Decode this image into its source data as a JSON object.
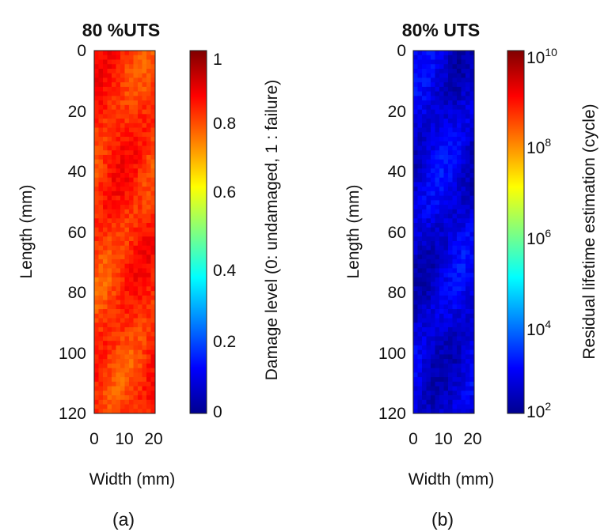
{
  "chart_data": [
    {
      "type": "heatmap",
      "title": "80 %UTS",
      "xlabel": "Width (mm)",
      "ylabel": "Length (mm)",
      "x_ticks": [
        "0",
        "10",
        "20"
      ],
      "y_ticks": [
        "0",
        "20",
        "40",
        "60",
        "80",
        "100",
        "120"
      ],
      "xlim": [
        0,
        20
      ],
      "ylim": [
        0,
        120
      ],
      "colorbar": {
        "label": "Damage level (0: undamaged, 1 : failure)",
        "ticks": [
          "0",
          "0.2",
          "0.4",
          "0.6",
          "0.8",
          "1"
        ],
        "scale": "linear",
        "range": [
          0,
          1
        ],
        "colormap": "jet"
      },
      "approx_level": 0.82,
      "panel_label": "(a)"
    },
    {
      "type": "heatmap",
      "title": "80% UTS",
      "xlabel": "Width (mm)",
      "ylabel": "Length (mm)",
      "x_ticks": [
        "0",
        "10",
        "20"
      ],
      "y_ticks": [
        "0",
        "20",
        "40",
        "60",
        "80",
        "100",
        "120"
      ],
      "xlim": [
        0,
        20
      ],
      "ylim": [
        0,
        120
      ],
      "colorbar": {
        "label": "Residual lifetime estimation (cycle)",
        "ticks": [
          {
            "base": "10",
            "exp": "2"
          },
          {
            "base": "10",
            "exp": "4"
          },
          {
            "base": "10",
            "exp": "6"
          },
          {
            "base": "10",
            "exp": "8"
          },
          {
            "base": "10",
            "exp": "10"
          }
        ],
        "scale": "log",
        "range": [
          100,
          10000000000
        ],
        "colormap": "jet"
      },
      "approx_level": 0.06,
      "panel_label": "(b)"
    }
  ]
}
